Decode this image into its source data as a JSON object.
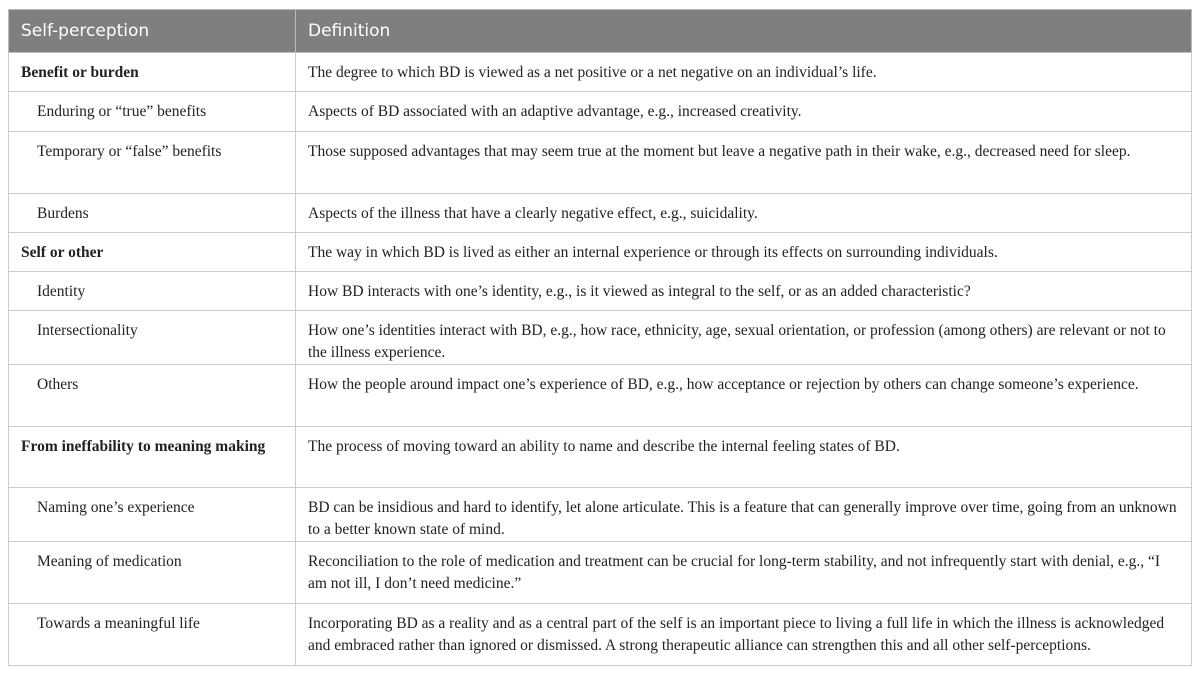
{
  "header": {
    "col1": "Self-perception",
    "col2": "Definition"
  },
  "rows": [
    {
      "term": "Benefit or burden",
      "definition": "The degree to which BD is viewed as a net positive or a net negative on an individual’s life."
    },
    {
      "term": "Enduring or “true” benefits",
      "definition": "Aspects of BD associated with an adaptive advantage, e.g., increased creativity."
    },
    {
      "term": "Temporary or “false” benefits",
      "definition": "Those supposed advantages that may seem true at the moment but leave a negative path in their wake, e.g., decreased need for sleep."
    },
    {
      "term": "Burdens",
      "definition": "Aspects of the illness that have a clearly negative effect, e.g., suicidality."
    },
    {
      "term": "Self or other",
      "definition": "The way in which BD is lived as either an internal experience or through its effects on surrounding individuals."
    },
    {
      "term": "Identity",
      "definition": "How BD interacts with one’s identity, e.g., is it viewed as integral to the self, or as an added characteristic?"
    },
    {
      "term": "Intersectionality",
      "definition": "How one’s identities interact with BD, e.g., how race, ethnicity, age, sexual orientation, or profession (among others) are relevant or not to the illness experience."
    },
    {
      "term": "Others",
      "definition": "How the people around impact one’s experience of BD, e.g., how acceptance or rejection by others can change someone’s experience."
    },
    {
      "term": "From ineffability to meaning making",
      "definition": "The process of moving toward an ability to name and describe the internal feeling states of BD."
    },
    {
      "term": "Naming one’s experience",
      "definition": "BD can be insidious and hard to identify, let alone articulate. This is a feature that can generally improve over time, going from an unknown to a better known state of mind."
    },
    {
      "term": "Meaning of medication",
      "definition": "Reconciliation to the role of medication and treatment can be crucial for long-term stability, and not infrequently start with denial, e.g., “I am not ill, I don’t need medicine.”"
    },
    {
      "term": "Towards a meaningful life",
      "definition": "Incorporating BD as a reality and as a central part of the self is an important piece to living a full life in which the illness is acknowledged and embraced rather than ignored or dismissed. A strong therapeutic alliance can strengthen this and all other self-perceptions."
    }
  ]
}
